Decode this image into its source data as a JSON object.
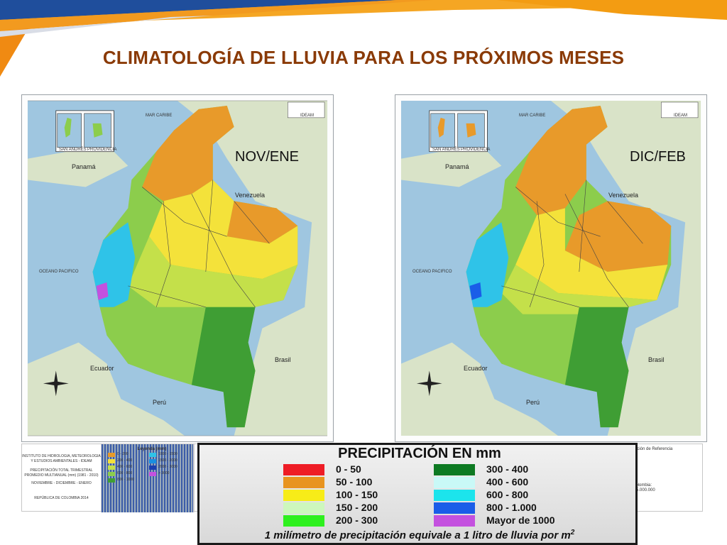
{
  "slide": {
    "title": "CLIMATOLOGÍA DE LLUVIA PARA LOS PRÓXIMOS MESES",
    "accent_colors": {
      "orange": "#f39c12",
      "blue": "#1f4e9c",
      "title": "#8a3a06"
    }
  },
  "maps": [
    {
      "period": "NOV/ENE",
      "labels": {
        "panama": "Panamá",
        "venezuela": "Venezuela",
        "ecuador": "Ecuador",
        "peru": "Perú",
        "brasil": "Brasil",
        "mar_caribe": "MAR CARIBE",
        "oceano_pacifico": "OCEANO PACIFICO",
        "san_andres": "SAN ANDRÉS",
        "providencia": "PROVIDENCIA",
        "logo": "IDEAM"
      }
    },
    {
      "period": "DIC/FEB",
      "labels": {
        "panama": "Panamá",
        "venezuela": "Venezuela",
        "ecuador": "Ecuador",
        "peru": "Perú",
        "brasil": "Brasil",
        "mar_caribe": "MAR CARIBE",
        "oceano_pacifico": "OCEANO PACIFICO",
        "san_andres": "SAN ANDRÉS",
        "providencia": "PROVIDENCIA",
        "logo": "IDEAM"
      }
    }
  ],
  "map_info": {
    "institute": "INSTITUTO DE HIDROLOGIA, METEOROLOGIA Y ESTUDIOS AMBIENTALES - IDEAM",
    "product": "PRECIPITACIÓN TOTAL TRIMESTRAL PROMEDIO MULTIANUAL (mm) (1981 - 2010)",
    "months": "NOVIEMBRE - DICIEMBRE - ENERO",
    "country": "REPÚBLICA DE COLOMBIA 2014",
    "legend_title": "Leyenda (mm)",
    "legend_ranges": [
      "0 - 200",
      "200 - 400",
      "400 - 600",
      "600 - 800",
      "800 - 1000",
      "1000 - 1500",
      "1500 - 2000",
      "2000 - 3000",
      "> 3000"
    ],
    "reference_title": "cación de Referencia",
    "scale_label": "Colombia:",
    "scale_value": "1:5.000.000"
  },
  "legend": {
    "title": "PRECIPITACIÓN EN mm",
    "items": [
      {
        "label": "0 - 50",
        "color": "#ee1c25"
      },
      {
        "label": "50 - 100",
        "color": "#e8941f"
      },
      {
        "label": "100 - 150",
        "color": "#f7ec18"
      },
      {
        "label": "150 - 200",
        "color": "#cdf7bd"
      },
      {
        "label": "200 - 300",
        "color": "#2ef01e"
      },
      {
        "label": "300 - 400",
        "color": "#0d7a22"
      },
      {
        "label": "400 - 600",
        "color": "#c9f9f7"
      },
      {
        "label": "600 - 800",
        "color": "#1ce4ec"
      },
      {
        "label": "800 - 1.000",
        "color": "#1a5de8"
      },
      {
        "label": "Mayor de 1000",
        "color": "#c451df"
      }
    ],
    "note_prefix": "1 milímetro de precipitación equivale a 1 litro de lluvia por m",
    "note_superscript": "2"
  }
}
